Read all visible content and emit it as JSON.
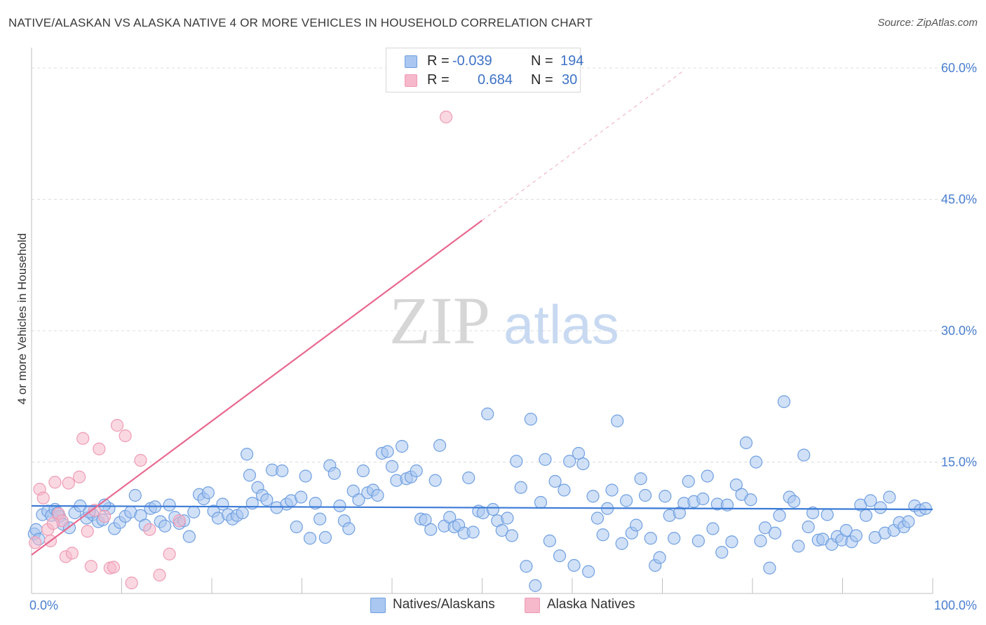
{
  "title": "NATIVE/ALASKAN VS ALASKA NATIVE 4 OR MORE VEHICLES IN HOUSEHOLD CORRELATION CHART",
  "source": "Source: ZipAtlas.com",
  "watermark": {
    "zip": "ZIP",
    "atlas": "atlas"
  },
  "legend": {
    "rows": [
      {
        "r_label": "R =",
        "r_value": "-0.039",
        "n_label": "N =",
        "n_value": "194",
        "color": "#a9c7f0"
      },
      {
        "r_label": "R =",
        "r_value": "0.684",
        "n_label": "N =",
        "n_value": "30",
        "color": "#f6b8cb"
      }
    ]
  },
  "bottom_legend": [
    {
      "label": "Natives/Alaskans",
      "color": "#a9c7f0"
    },
    {
      "label": "Alaska Natives",
      "color": "#f6b8cb"
    }
  ],
  "chart_data": {
    "type": "scatter",
    "xlabel": "",
    "ylabel": "4 or more Vehicles in Household",
    "xlim": [
      0,
      100
    ],
    "ylim": [
      0,
      60
    ],
    "x_tick_labels": [
      {
        "value": 0,
        "label": "0.0%"
      },
      {
        "value": 100,
        "label": "100.0%"
      }
    ],
    "y_tick_labels": [
      {
        "value": 15,
        "label": "15.0%"
      },
      {
        "value": 30,
        "label": "30.0%"
      },
      {
        "value": 45,
        "label": "45.0%"
      },
      {
        "value": 60,
        "label": "60.0%"
      }
    ],
    "series": [
      {
        "name": "Natives/Alaskans",
        "color": "#6f9fe0",
        "fill": "#a9c7f0",
        "trend": {
          "x0": 0,
          "y0": 10.0,
          "x1": 100,
          "y1": 9.6,
          "color": "#3a7ad6"
        },
        "points": [
          [
            0.3,
            6.8
          ],
          [
            0.5,
            7.3
          ],
          [
            1.2,
            9.0
          ],
          [
            1.8,
            9.4
          ],
          [
            2.2,
            8.9
          ],
          [
            2.6,
            9.6
          ],
          [
            3.1,
            8.8
          ],
          [
            3.5,
            7.9
          ],
          [
            4.2,
            7.5
          ],
          [
            4.8,
            9.2
          ],
          [
            5.4,
            10.0
          ],
          [
            6.1,
            8.6
          ],
          [
            6.8,
            9.0
          ],
          [
            7.4,
            8.2
          ],
          [
            7.9,
            8.4
          ],
          [
            8.6,
            9.7
          ],
          [
            9.2,
            7.4
          ],
          [
            9.8,
            8.1
          ],
          [
            10.4,
            8.8
          ],
          [
            11.0,
            9.3
          ],
          [
            11.5,
            11.2
          ],
          [
            12.1,
            8.9
          ],
          [
            12.6,
            7.8
          ],
          [
            13.2,
            9.7
          ],
          [
            13.7,
            9.9
          ],
          [
            14.3,
            8.2
          ],
          [
            14.8,
            7.7
          ],
          [
            15.3,
            10.1
          ],
          [
            15.9,
            8.7
          ],
          [
            16.4,
            8.0
          ],
          [
            16.9,
            8.3
          ],
          [
            17.5,
            6.5
          ],
          [
            18.0,
            9.3
          ],
          [
            18.6,
            11.3
          ],
          [
            19.1,
            10.8
          ],
          [
            19.6,
            11.5
          ],
          [
            20.2,
            9.4
          ],
          [
            20.7,
            8.6
          ],
          [
            21.2,
            10.2
          ],
          [
            21.8,
            9.0
          ],
          [
            22.3,
            8.5
          ],
          [
            22.8,
            8.9
          ],
          [
            23.4,
            9.2
          ],
          [
            23.9,
            15.9
          ],
          [
            24.2,
            13.5
          ],
          [
            24.5,
            10.3
          ],
          [
            25.1,
            12.1
          ],
          [
            25.6,
            11.2
          ],
          [
            26.1,
            10.7
          ],
          [
            26.7,
            14.1
          ],
          [
            27.2,
            9.8
          ],
          [
            27.8,
            14.0
          ],
          [
            28.3,
            10.2
          ],
          [
            28.8,
            10.6
          ],
          [
            29.4,
            7.6
          ],
          [
            29.9,
            11.0
          ],
          [
            30.4,
            13.4
          ],
          [
            30.9,
            6.3
          ],
          [
            31.5,
            10.3
          ],
          [
            32.0,
            8.5
          ],
          [
            32.6,
            6.4
          ],
          [
            33.1,
            14.6
          ],
          [
            33.6,
            13.7
          ],
          [
            34.2,
            10.0
          ],
          [
            34.7,
            8.3
          ],
          [
            35.2,
            7.4
          ],
          [
            35.7,
            11.7
          ],
          [
            36.3,
            10.7
          ],
          [
            36.8,
            14.0
          ],
          [
            37.3,
            11.5
          ],
          [
            37.9,
            11.8
          ],
          [
            38.4,
            11.2
          ],
          [
            38.9,
            16.0
          ],
          [
            39.5,
            16.2
          ],
          [
            40.0,
            14.5
          ],
          [
            40.5,
            12.9
          ],
          [
            41.1,
            16.8
          ],
          [
            41.6,
            13.1
          ],
          [
            42.1,
            13.3
          ],
          [
            42.7,
            14.0
          ],
          [
            43.2,
            8.5
          ],
          [
            43.7,
            8.4
          ],
          [
            44.3,
            7.3
          ],
          [
            44.8,
            12.9
          ],
          [
            45.3,
            16.9
          ],
          [
            45.8,
            7.7
          ],
          [
            46.4,
            8.7
          ],
          [
            46.9,
            7.6
          ],
          [
            47.4,
            7.8
          ],
          [
            48.0,
            6.9
          ],
          [
            48.5,
            13.2
          ],
          [
            49.0,
            7.0
          ],
          [
            49.6,
            9.4
          ],
          [
            50.1,
            9.2
          ],
          [
            50.6,
            20.5
          ],
          [
            51.2,
            9.6
          ],
          [
            51.7,
            8.3
          ],
          [
            52.2,
            7.2
          ],
          [
            52.8,
            8.6
          ],
          [
            53.3,
            6.6
          ],
          [
            53.8,
            15.1
          ],
          [
            54.3,
            12.1
          ],
          [
            54.9,
            3.1
          ],
          [
            55.4,
            19.9
          ],
          [
            55.9,
            0.9
          ],
          [
            56.5,
            10.4
          ],
          [
            57.0,
            15.3
          ],
          [
            57.5,
            6.0
          ],
          [
            58.1,
            12.8
          ],
          [
            58.6,
            4.3
          ],
          [
            59.1,
            11.8
          ],
          [
            59.7,
            15.1
          ],
          [
            60.2,
            3.2
          ],
          [
            60.7,
            16.0
          ],
          [
            61.2,
            14.8
          ],
          [
            61.8,
            2.5
          ],
          [
            62.3,
            11.1
          ],
          [
            62.8,
            8.6
          ],
          [
            63.4,
            6.7
          ],
          [
            63.9,
            9.7
          ],
          [
            64.4,
            11.8
          ],
          [
            65.0,
            19.7
          ],
          [
            65.5,
            5.7
          ],
          [
            66.0,
            10.6
          ],
          [
            66.6,
            6.9
          ],
          [
            67.1,
            7.8
          ],
          [
            67.6,
            13.1
          ],
          [
            68.1,
            11.2
          ],
          [
            68.7,
            6.3
          ],
          [
            69.2,
            3.2
          ],
          [
            69.7,
            4.1
          ],
          [
            70.3,
            11.1
          ],
          [
            70.8,
            8.9
          ],
          [
            71.3,
            6.3
          ],
          [
            71.9,
            9.2
          ],
          [
            72.4,
            10.3
          ],
          [
            72.9,
            12.8
          ],
          [
            73.5,
            10.5
          ],
          [
            74.0,
            6.0
          ],
          [
            74.5,
            10.8
          ],
          [
            75.0,
            13.4
          ],
          [
            75.6,
            7.4
          ],
          [
            76.1,
            10.2
          ],
          [
            76.6,
            4.7
          ],
          [
            77.2,
            10.1
          ],
          [
            77.7,
            5.9
          ],
          [
            78.2,
            12.4
          ],
          [
            78.8,
            11.3
          ],
          [
            79.3,
            17.2
          ],
          [
            79.8,
            10.7
          ],
          [
            80.4,
            15.0
          ],
          [
            80.9,
            6.0
          ],
          [
            81.4,
            7.5
          ],
          [
            81.9,
            2.9
          ],
          [
            82.5,
            6.9
          ],
          [
            83.0,
            8.9
          ],
          [
            83.5,
            21.9
          ],
          [
            84.1,
            11.0
          ],
          [
            84.6,
            10.5
          ],
          [
            85.1,
            5.4
          ],
          [
            85.7,
            15.8
          ],
          [
            86.2,
            7.6
          ],
          [
            86.7,
            9.2
          ],
          [
            87.3,
            6.1
          ],
          [
            87.8,
            6.2
          ],
          [
            88.3,
            9.0
          ],
          [
            88.8,
            5.6
          ],
          [
            89.4,
            6.5
          ],
          [
            89.9,
            6.1
          ],
          [
            90.4,
            7.2
          ],
          [
            91.0,
            5.9
          ],
          [
            91.5,
            6.6
          ],
          [
            92.0,
            10.1
          ],
          [
            92.6,
            8.9
          ],
          [
            93.1,
            10.6
          ],
          [
            93.6,
            6.4
          ],
          [
            94.2,
            9.8
          ],
          [
            94.7,
            6.9
          ],
          [
            95.2,
            11.0
          ],
          [
            95.7,
            7.2
          ],
          [
            96.3,
            8.1
          ],
          [
            96.8,
            7.6
          ],
          [
            97.3,
            8.2
          ],
          [
            98.0,
            10.0
          ],
          [
            98.6,
            9.5
          ],
          [
            99.2,
            9.7
          ],
          [
            0.8,
            6.2
          ],
          [
            2.9,
            9.2
          ],
          [
            6.4,
            9.3
          ],
          [
            8.1,
            10.1
          ]
        ]
      },
      {
        "name": "Alaska Natives",
        "color": "#ee9ab3",
        "fill": "#f6b8cb",
        "trend": {
          "x0": 0,
          "y0": 4.4,
          "x1": 50,
          "y1": 42.6,
          "dashed_to": [
            72.5,
            59.8
          ],
          "color": "#e8688f"
        },
        "points": [
          [
            0.4,
            5.8
          ],
          [
            0.9,
            11.9
          ],
          [
            1.3,
            10.9
          ],
          [
            1.8,
            7.3
          ],
          [
            2.1,
            6.0
          ],
          [
            2.6,
            12.7
          ],
          [
            3.0,
            9.1
          ],
          [
            3.4,
            8.3
          ],
          [
            3.8,
            4.2
          ],
          [
            4.1,
            12.6
          ],
          [
            4.5,
            4.6
          ],
          [
            5.3,
            13.3
          ],
          [
            5.7,
            17.7
          ],
          [
            6.2,
            7.1
          ],
          [
            6.6,
            3.1
          ],
          [
            7.0,
            9.5
          ],
          [
            7.5,
            16.5
          ],
          [
            8.1,
            8.8
          ],
          [
            8.7,
            2.9
          ],
          [
            9.1,
            3.0
          ],
          [
            9.5,
            19.2
          ],
          [
            10.4,
            18.0
          ],
          [
            11.1,
            1.2
          ],
          [
            12.1,
            15.2
          ],
          [
            13.1,
            7.3
          ],
          [
            14.2,
            2.1
          ],
          [
            15.3,
            4.5
          ],
          [
            16.4,
            8.3
          ],
          [
            2.4,
            8.0
          ],
          [
            46.0,
            54.4
          ]
        ]
      }
    ]
  }
}
